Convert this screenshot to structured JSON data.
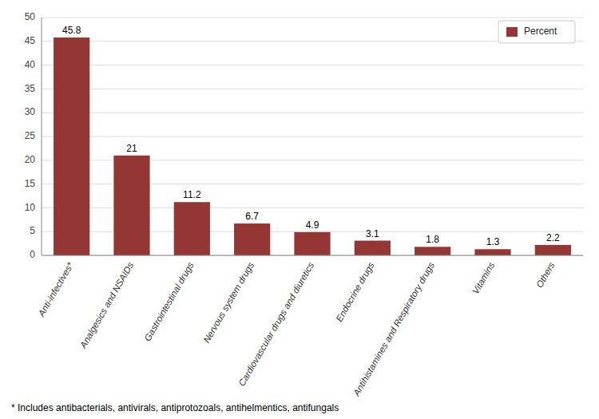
{
  "chart_data": {
    "type": "bar",
    "categories": [
      "Anti-infectives*",
      "Analgesics and NSAIDs",
      "Gastrointestinal drugs",
      "Nervous system drugs",
      "Cardiovascular drugs and diuretics",
      "Endocrine drugs",
      "Antihistamines and Respiratory drugs",
      "Vitamins",
      "Others"
    ],
    "series": [
      {
        "name": "Percent",
        "color": "#943634",
        "values": [
          45.8,
          21.0,
          11.2,
          6.7,
          4.9,
          3.1,
          1.8,
          1.3,
          2.2
        ]
      }
    ],
    "ylim": [
      0,
      50
    ],
    "yticks": [
      0,
      5,
      10,
      15,
      20,
      25,
      30,
      35,
      40,
      45,
      50
    ],
    "grid": true,
    "legend": "upper right",
    "data_labels": true,
    "annotations": [
      "* Includes antibacterials, antivirals, antiprotozoals, antihelmentics, antifungals"
    ]
  }
}
